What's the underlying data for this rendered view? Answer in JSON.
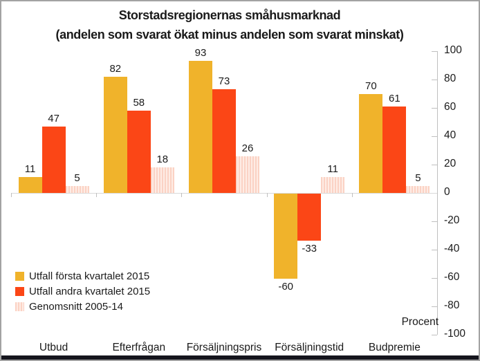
{
  "chart_data": {
    "type": "bar",
    "title": "Storstadsregionernas småhusmarknad",
    "subtitle": "(andelen som svarat ökat minus andelen som svarat minskat)",
    "categories": [
      "Utbud",
      "Efterfrågan",
      "Försäljningspris",
      "Försäljningstid",
      "Budpremie"
    ],
    "series": [
      {
        "name": "Utfall första kvartalet 2015",
        "values": [
          11,
          82,
          93,
          -60,
          70
        ],
        "color": "#F0B32B",
        "pattern": "solid"
      },
      {
        "name": "Utfall andra kvartalet 2015",
        "values": [
          47,
          58,
          73,
          -33,
          61
        ],
        "color": "#FB4616",
        "pattern": "solid"
      },
      {
        "name": "Genomsnitt 2005-14",
        "values": [
          5,
          18,
          26,
          11,
          5
        ],
        "color": "#FBD2C4",
        "stripe_color": "#FEECE5",
        "pattern": "vertical-stripes"
      }
    ],
    "ylabel": "Procent",
    "ylim": [
      -100,
      100
    ],
    "yticks": [
      100,
      80,
      60,
      40,
      20,
      0,
      -20,
      -40,
      -60,
      -80,
      -100
    ],
    "axis_side": "right",
    "grid": false,
    "value_labels": true,
    "legend_position": "bottom-left"
  }
}
